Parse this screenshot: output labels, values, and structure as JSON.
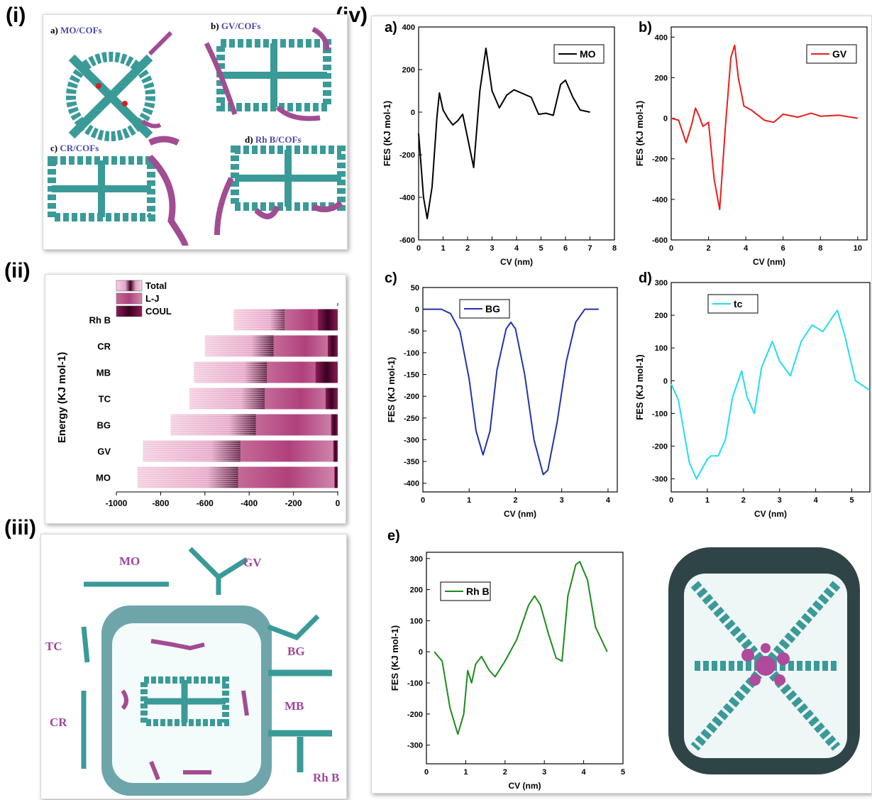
{
  "panel_labels": {
    "i": "(i)",
    "ii": "(ii)",
    "iii": "(iii)",
    "iv": "(iv)"
  },
  "panel_i": {
    "items": [
      {
        "letter": "a)",
        "name": "MO/COFs"
      },
      {
        "letter": "b)",
        "name": "GV/COFs"
      },
      {
        "letter": "c)",
        "name": "CR/COFs"
      },
      {
        "letter": "d)",
        "name": "Rh B/COFs"
      }
    ]
  },
  "panel_iii": {
    "labels": [
      "MO",
      "GV",
      "TC",
      "BG",
      "CR",
      "MB",
      "Rh B"
    ]
  },
  "colors": {
    "framework": "#3a9a98",
    "dye": "#a14c93",
    "oxygen": "#d22020",
    "surface": "#2f4446",
    "total": "#f0c8dc",
    "lj": "#c46a98",
    "coul": "#7a1248"
  },
  "chart_data": [
    {
      "type": "bar",
      "orientation": "horizontal",
      "ylabel": "Energy (KJ mol-1)",
      "categories": [
        "Rh B",
        "CR",
        "MB",
        "TC",
        "BG",
        "GV",
        "MO"
      ],
      "series": [
        {
          "name": "Total",
          "values": [
            -470,
            -600,
            -650,
            -670,
            -755,
            -880,
            -905
          ]
        },
        {
          "name": "L-J",
          "values": [
            -240,
            -290,
            -320,
            -330,
            -370,
            -440,
            -450
          ]
        },
        {
          "name": "COUL",
          "values": [
            -90,
            -45,
            -100,
            -55,
            -30,
            -20,
            -15
          ]
        }
      ],
      "xlim": [
        -1000,
        0
      ],
      "xticks": [
        "-1000",
        "-800",
        "-600",
        "-400",
        "-200",
        "0"
      ],
      "legend": "top-left"
    },
    {
      "type": "line",
      "panel": "a)",
      "xlabel": "CV (nm)",
      "ylabel": "FES (KJ mol-1)",
      "series": [
        {
          "name": "MO",
          "color": "#000000",
          "x": [
            0,
            0.2,
            0.35,
            0.55,
            0.75,
            0.85,
            1.0,
            1.2,
            1.4,
            1.6,
            1.8,
            2.0,
            2.25,
            2.5,
            2.75,
            3.0,
            3.3,
            3.6,
            3.9,
            4.2,
            4.6,
            4.9,
            5.2,
            5.5,
            5.8,
            6.0,
            6.3,
            6.6,
            7.0
          ],
          "y": [
            -100,
            -400,
            -500,
            -350,
            -20,
            90,
            10,
            -30,
            -60,
            -40,
            -10,
            -120,
            -260,
            100,
            300,
            100,
            20,
            80,
            105,
            90,
            70,
            -10,
            -5,
            -15,
            130,
            150,
            70,
            10,
            0
          ]
        }
      ],
      "xlim": [
        0,
        8
      ],
      "ylim": [
        -600,
        400
      ],
      "xticks": [
        0,
        1,
        2,
        3,
        4,
        5,
        6,
        7,
        8
      ],
      "yticks": [
        -600,
        -400,
        -200,
        0,
        200,
        400
      ]
    },
    {
      "type": "line",
      "panel": "b)",
      "xlabel": "CV (nm)",
      "ylabel": "FES (KJ mol-1)",
      "series": [
        {
          "name": "GV",
          "color": "#e81e1e",
          "x": [
            0,
            0.4,
            0.8,
            1.1,
            1.3,
            1.5,
            1.7,
            2.0,
            2.3,
            2.6,
            2.9,
            3.2,
            3.4,
            3.6,
            3.9,
            4.3,
            5.0,
            5.5,
            6.0,
            6.8,
            7.5,
            8.0,
            9.0,
            10.0
          ],
          "y": [
            0,
            -10,
            -120,
            -30,
            50,
            10,
            -40,
            -20,
            -300,
            -450,
            -50,
            300,
            360,
            200,
            60,
            40,
            -10,
            -20,
            20,
            5,
            25,
            10,
            15,
            0
          ]
        }
      ],
      "xlim": [
        0,
        10.5
      ],
      "ylim": [
        -600,
        450
      ],
      "xticks": [
        0,
        2,
        4,
        6,
        8,
        10
      ],
      "yticks": [
        -600,
        -400,
        -200,
        0,
        200,
        400
      ]
    },
    {
      "type": "line",
      "panel": "c)",
      "xlabel": "CV (nm)",
      "ylabel": "FES (KJ mol-1)",
      "series": [
        {
          "name": "BG",
          "color": "#2233aa",
          "x": [
            0,
            0.4,
            0.6,
            0.8,
            1.0,
            1.15,
            1.3,
            1.45,
            1.6,
            1.8,
            1.9,
            2.0,
            2.2,
            2.4,
            2.6,
            2.7,
            2.9,
            3.1,
            3.3,
            3.5,
            3.8
          ],
          "y": [
            0,
            0,
            -10,
            -50,
            -160,
            -280,
            -335,
            -280,
            -140,
            -45,
            -30,
            -45,
            -150,
            -300,
            -380,
            -370,
            -260,
            -120,
            -30,
            0,
            0
          ]
        }
      ],
      "xlim": [
        0,
        4.2
      ],
      "ylim": [
        -420,
        50
      ],
      "xticks": [
        0,
        1,
        2,
        3,
        4
      ],
      "yticks": [
        -400,
        -350,
        -300,
        -250,
        -200,
        -150,
        -100,
        -50,
        0,
        50
      ]
    },
    {
      "type": "line",
      "panel": "d)",
      "xlabel": "CV (nm)",
      "ylabel": "FES (KJ mol-1)",
      "series": [
        {
          "name": "tc",
          "color": "#22dded",
          "x": [
            0,
            0.2,
            0.5,
            0.7,
            0.9,
            1.0,
            1.1,
            1.3,
            1.5,
            1.7,
            1.95,
            2.1,
            2.3,
            2.5,
            2.8,
            3.0,
            3.3,
            3.6,
            3.9,
            4.2,
            4.5,
            4.6,
            4.8,
            5.1,
            5.5
          ],
          "y": [
            -10,
            -60,
            -250,
            -300,
            -260,
            -240,
            -230,
            -230,
            -180,
            -50,
            30,
            -50,
            -100,
            40,
            120,
            60,
            15,
            120,
            170,
            150,
            200,
            215,
            140,
            0,
            -30
          ]
        }
      ],
      "xlim": [
        0,
        5.5
      ],
      "ylim": [
        -340,
        300
      ],
      "xticks": [
        0,
        1,
        2,
        3,
        4,
        5
      ],
      "yticks": [
        -300,
        -200,
        -100,
        0,
        100,
        200,
        300
      ]
    },
    {
      "type": "line",
      "panel": "e)",
      "xlabel": "CV (nm)",
      "ylabel": "FES (KJ mol-1)",
      "series": [
        {
          "name": "Rh B",
          "color": "#1e8a1e",
          "x": [
            0.2,
            0.4,
            0.6,
            0.8,
            0.95,
            1.05,
            1.15,
            1.25,
            1.4,
            1.6,
            1.75,
            2.0,
            2.3,
            2.6,
            2.75,
            2.9,
            3.1,
            3.3,
            3.45,
            3.6,
            3.8,
            3.9,
            4.1,
            4.3,
            4.6
          ],
          "y": [
            0,
            -30,
            -180,
            -265,
            -200,
            -60,
            -100,
            -40,
            -15,
            -60,
            -80,
            -30,
            40,
            150,
            180,
            150,
            60,
            -20,
            -30,
            180,
            280,
            290,
            230,
            80,
            0
          ]
        }
      ],
      "xlim": [
        0,
        5
      ],
      "ylim": [
        -360,
        320
      ],
      "xticks": [
        0,
        1,
        2,
        3,
        4,
        5
      ],
      "yticks": [
        -300,
        -200,
        -100,
        0,
        100,
        200,
        300
      ]
    }
  ]
}
